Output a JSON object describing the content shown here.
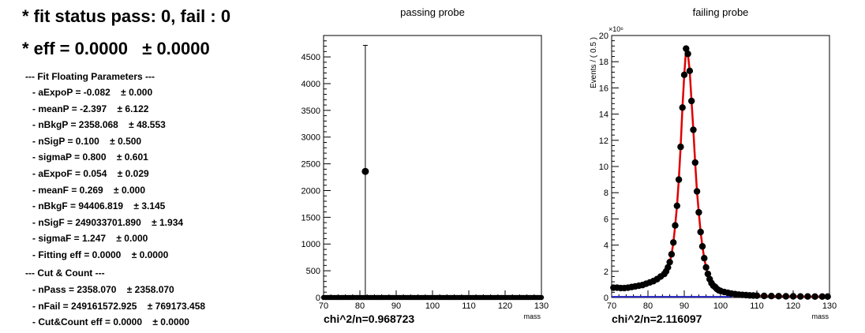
{
  "header": {
    "fit_status": "* fit status pass: 0, fail : 0",
    "eff": "* eff = 0.0000   ± 0.0000"
  },
  "params": {
    "title": "--- Fit Floating Parameters ---",
    "items": [
      "- aExpoP = -0.082    ± 0.000",
      "- meanP = -2.397    ± 6.122",
      "- nBkgP = 2358.068    ± 48.553",
      "- nSigP = 0.100    ± 0.500",
      "- sigmaP = 0.800    ± 0.601",
      "- aExpoF = 0.054    ± 0.029",
      "- meanF = 0.269    ± 0.000",
      "- nBkgF = 94406.819    ± 3.145",
      "- nSigF = 249033701.890    ± 1.934",
      "- sigmaF = 1.247    ± 0.000",
      "- Fitting eff = 0.0000    ± 0.0000"
    ]
  },
  "cutcount": {
    "title": "--- Cut & Count ---",
    "items": [
      "- nPass = 2358.070    ± 2358.070",
      "- nFail = 249161572.925    ± 769173.458",
      "- Cut&Count eff = 0.0000    ± 0.0000"
    ]
  },
  "chart_data": [
    {
      "type": "scatter",
      "title": "passing probe",
      "xlabel": "mass",
      "ylabel": "",
      "xlim": [
        70,
        130
      ],
      "ylim": [
        0,
        4900
      ],
      "xticks": [
        "70",
        "80",
        "90",
        "100",
        "110",
        "120",
        "130"
      ],
      "yticks": [
        "0",
        "500",
        "1000",
        "1500",
        "2000",
        "2500",
        "3000",
        "3500",
        "4000",
        "4500"
      ],
      "chi2": "chi^2/n=0.968723",
      "points": [
        {
          "x": 81.5,
          "y": 2358,
          "ylo": 0,
          "yhi": 4716
        }
      ],
      "baseline": {
        "value": 0,
        "x_from": 70,
        "x_to": 130
      },
      "fit_color": "#1f1fbf"
    },
    {
      "type": "scatter",
      "title": "failing probe",
      "xlabel": "mass",
      "ylabel": "Events / ( 0.5 )",
      "exponent": "×10⁶",
      "xlim": [
        70,
        130
      ],
      "ylim": [
        0,
        20
      ],
      "xticks": [
        "70",
        "80",
        "90",
        "100",
        "110",
        "120",
        "130"
      ],
      "yticks": [
        "0",
        "2",
        "4",
        "6",
        "8",
        "10",
        "12",
        "14",
        "16",
        "18",
        "20"
      ],
      "chi2": "chi^2/n=2.116097",
      "x": [
        70.5,
        71.5,
        72.5,
        73.5,
        74.5,
        75.5,
        76.5,
        77.5,
        78.5,
        79.5,
        80.5,
        81.5,
        82.5,
        83.5,
        84.5,
        85.0,
        85.5,
        86.0,
        86.5,
        87.0,
        87.5,
        88.0,
        88.5,
        89.0,
        89.5,
        90.0,
        90.5,
        91.0,
        91.5,
        92.0,
        92.5,
        93.0,
        93.5,
        94.0,
        94.5,
        95.0,
        95.5,
        96.0,
        96.5,
        97.0,
        97.5,
        98.0,
        98.5,
        99.0,
        99.5,
        100.0,
        101.0,
        102.0,
        103.0,
        104.0,
        105.0,
        106.0,
        107.0,
        108.0,
        109.0,
        110.0,
        112.0,
        114.0,
        116.0,
        118.0,
        120.0,
        122.0,
        124.0,
        126.0,
        128.0,
        129.5
      ],
      "y": [
        0.75,
        0.75,
        0.72,
        0.72,
        0.75,
        0.8,
        0.85,
        0.9,
        0.95,
        1.05,
        1.15,
        1.25,
        1.4,
        1.6,
        1.8,
        2.0,
        2.3,
        2.7,
        3.3,
        4.2,
        5.5,
        7.0,
        9.0,
        11.5,
        14.5,
        17.0,
        19.0,
        18.6,
        17.3,
        15.0,
        12.8,
        10.3,
        8.1,
        6.5,
        5.0,
        3.9,
        3.0,
        2.3,
        1.8,
        1.4,
        1.1,
        0.9,
        0.8,
        0.65,
        0.55,
        0.5,
        0.42,
        0.36,
        0.3,
        0.26,
        0.22,
        0.2,
        0.18,
        0.16,
        0.15,
        0.14,
        0.12,
        0.11,
        0.1,
        0.09,
        0.09,
        0.08,
        0.08,
        0.07,
        0.07,
        0.07
      ],
      "fit_color": "#e00000",
      "bkg_color": "#1f1fbf"
    }
  ]
}
